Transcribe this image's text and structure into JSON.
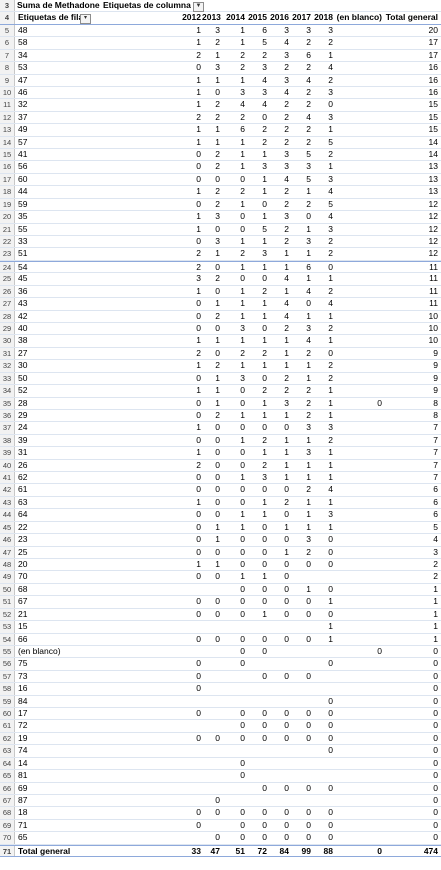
{
  "pivot": {
    "value_field": "Suma de Methadone",
    "column_field_label": "Etiquetas de columna",
    "row_field_label": "Etiquetas de fila",
    "filter_icon": "chevron-down-icon",
    "sort_filter_icon": "sort-filter-icon",
    "columns": [
      "2012",
      "2013",
      "2014",
      "2015",
      "2016",
      "2017",
      "2018",
      "(en blanco)",
      "Total general"
    ],
    "rows": [
      {
        "n": "5",
        "label": "48",
        "v": [
          "1",
          "3",
          "1",
          "6",
          "3",
          "3",
          "3",
          "",
          "20"
        ]
      },
      {
        "n": "6",
        "label": "58",
        "v": [
          "1",
          "2",
          "1",
          "5",
          "4",
          "2",
          "2",
          "",
          "17"
        ]
      },
      {
        "n": "7",
        "label": "34",
        "v": [
          "2",
          "1",
          "2",
          "2",
          "3",
          "6",
          "1",
          "",
          "17"
        ]
      },
      {
        "n": "8",
        "label": "53",
        "v": [
          "0",
          "3",
          "2",
          "3",
          "2",
          "2",
          "4",
          "",
          "16"
        ]
      },
      {
        "n": "9",
        "label": "47",
        "v": [
          "1",
          "1",
          "1",
          "4",
          "3",
          "4",
          "2",
          "",
          "16"
        ]
      },
      {
        "n": "10",
        "label": "46",
        "v": [
          "1",
          "0",
          "3",
          "3",
          "4",
          "2",
          "3",
          "",
          "16"
        ]
      },
      {
        "n": "11",
        "label": "32",
        "v": [
          "1",
          "2",
          "4",
          "4",
          "2",
          "2",
          "0",
          "",
          "15"
        ]
      },
      {
        "n": "12",
        "label": "37",
        "v": [
          "2",
          "2",
          "2",
          "0",
          "2",
          "4",
          "3",
          "",
          "15"
        ]
      },
      {
        "n": "13",
        "label": "49",
        "v": [
          "1",
          "1",
          "6",
          "2",
          "2",
          "2",
          "1",
          "",
          "15"
        ]
      },
      {
        "n": "14",
        "label": "57",
        "v": [
          "1",
          "1",
          "1",
          "2",
          "2",
          "2",
          "5",
          "",
          "14"
        ]
      },
      {
        "n": "15",
        "label": "41",
        "v": [
          "0",
          "2",
          "1",
          "1",
          "3",
          "5",
          "2",
          "",
          "14"
        ]
      },
      {
        "n": "16",
        "label": "56",
        "v": [
          "0",
          "2",
          "1",
          "3",
          "3",
          "3",
          "1",
          "",
          "13"
        ]
      },
      {
        "n": "17",
        "label": "60",
        "v": [
          "0",
          "0",
          "0",
          "1",
          "4",
          "5",
          "3",
          "",
          "13"
        ]
      },
      {
        "n": "18",
        "label": "44",
        "v": [
          "1",
          "2",
          "2",
          "1",
          "2",
          "1",
          "4",
          "",
          "13"
        ]
      },
      {
        "n": "19",
        "label": "59",
        "v": [
          "0",
          "2",
          "1",
          "0",
          "2",
          "2",
          "5",
          "",
          "12"
        ]
      },
      {
        "n": "20",
        "label": "35",
        "v": [
          "1",
          "3",
          "0",
          "1",
          "3",
          "0",
          "4",
          "",
          "12"
        ]
      },
      {
        "n": "21",
        "label": "55",
        "v": [
          "1",
          "0",
          "0",
          "5",
          "2",
          "1",
          "3",
          "",
          "12"
        ]
      },
      {
        "n": "22",
        "label": "33",
        "v": [
          "0",
          "3",
          "1",
          "1",
          "2",
          "3",
          "2",
          "",
          "12"
        ]
      },
      {
        "n": "23",
        "label": "51",
        "v": [
          "2",
          "1",
          "2",
          "3",
          "1",
          "1",
          "2",
          "",
          "12"
        ]
      },
      {
        "n": "24",
        "label": "54",
        "v": [
          "2",
          "0",
          "1",
          "1",
          "1",
          "6",
          "0",
          "",
          "11"
        ]
      },
      {
        "n": "25",
        "label": "45",
        "v": [
          "3",
          "2",
          "0",
          "0",
          "4",
          "1",
          "1",
          "",
          "11"
        ]
      },
      {
        "n": "26",
        "label": "36",
        "v": [
          "1",
          "0",
          "1",
          "2",
          "1",
          "4",
          "2",
          "",
          "11"
        ]
      },
      {
        "n": "27",
        "label": "43",
        "v": [
          "0",
          "1",
          "1",
          "1",
          "4",
          "0",
          "4",
          "",
          "11"
        ]
      },
      {
        "n": "28",
        "label": "42",
        "v": [
          "0",
          "2",
          "1",
          "1",
          "4",
          "1",
          "1",
          "",
          "10"
        ]
      },
      {
        "n": "29",
        "label": "40",
        "v": [
          "0",
          "0",
          "3",
          "0",
          "2",
          "3",
          "2",
          "",
          "10"
        ]
      },
      {
        "n": "30",
        "label": "38",
        "v": [
          "1",
          "1",
          "1",
          "1",
          "1",
          "4",
          "1",
          "",
          "10"
        ]
      },
      {
        "n": "31",
        "label": "27",
        "v": [
          "2",
          "0",
          "2",
          "2",
          "1",
          "2",
          "0",
          "",
          "9"
        ]
      },
      {
        "n": "32",
        "label": "30",
        "v": [
          "1",
          "2",
          "1",
          "1",
          "1",
          "1",
          "2",
          "",
          "9"
        ]
      },
      {
        "n": "33",
        "label": "50",
        "v": [
          "0",
          "1",
          "3",
          "0",
          "2",
          "1",
          "2",
          "",
          "9"
        ]
      },
      {
        "n": "34",
        "label": "52",
        "v": [
          "1",
          "1",
          "0",
          "2",
          "2",
          "2",
          "1",
          "",
          "9"
        ]
      },
      {
        "n": "35",
        "label": "28",
        "v": [
          "0",
          "1",
          "0",
          "1",
          "3",
          "2",
          "1",
          "0",
          "8"
        ]
      },
      {
        "n": "36",
        "label": "29",
        "v": [
          "0",
          "2",
          "1",
          "1",
          "1",
          "2",
          "1",
          "",
          "8"
        ]
      },
      {
        "n": "37",
        "label": "24",
        "v": [
          "1",
          "0",
          "0",
          "0",
          "0",
          "3",
          "3",
          "",
          "7"
        ]
      },
      {
        "n": "38",
        "label": "39",
        "v": [
          "0",
          "0",
          "1",
          "2",
          "1",
          "1",
          "2",
          "",
          "7"
        ]
      },
      {
        "n": "39",
        "label": "31",
        "v": [
          "1",
          "0",
          "0",
          "1",
          "1",
          "3",
          "1",
          "",
          "7"
        ]
      },
      {
        "n": "40",
        "label": "26",
        "v": [
          "2",
          "0",
          "0",
          "2",
          "1",
          "1",
          "1",
          "",
          "7"
        ]
      },
      {
        "n": "41",
        "label": "62",
        "v": [
          "0",
          "0",
          "1",
          "3",
          "1",
          "1",
          "1",
          "",
          "7"
        ]
      },
      {
        "n": "42",
        "label": "61",
        "v": [
          "0",
          "0",
          "0",
          "0",
          "0",
          "2",
          "4",
          "",
          "6"
        ]
      },
      {
        "n": "43",
        "label": "63",
        "v": [
          "1",
          "0",
          "0",
          "1",
          "2",
          "1",
          "1",
          "",
          "6"
        ]
      },
      {
        "n": "44",
        "label": "64",
        "v": [
          "0",
          "0",
          "1",
          "1",
          "0",
          "1",
          "3",
          "",
          "6"
        ]
      },
      {
        "n": "45",
        "label": "22",
        "v": [
          "0",
          "1",
          "1",
          "0",
          "1",
          "1",
          "1",
          "",
          "5"
        ]
      },
      {
        "n": "46",
        "label": "23",
        "v": [
          "0",
          "1",
          "0",
          "0",
          "0",
          "3",
          "0",
          "",
          "4"
        ]
      },
      {
        "n": "47",
        "label": "25",
        "v": [
          "0",
          "0",
          "0",
          "0",
          "1",
          "2",
          "0",
          "",
          "3"
        ]
      },
      {
        "n": "48",
        "label": "20",
        "v": [
          "1",
          "1",
          "0",
          "0",
          "0",
          "0",
          "0",
          "",
          "2"
        ]
      },
      {
        "n": "49",
        "label": "70",
        "v": [
          "0",
          "0",
          "1",
          "1",
          "0",
          "",
          "",
          "",
          "2"
        ]
      },
      {
        "n": "50",
        "label": "68",
        "v": [
          "",
          "",
          "0",
          "0",
          "0",
          "1",
          "0",
          "",
          "1"
        ]
      },
      {
        "n": "51",
        "label": "67",
        "v": [
          "0",
          "0",
          "0",
          "0",
          "0",
          "0",
          "1",
          "",
          "1"
        ]
      },
      {
        "n": "52",
        "label": "21",
        "v": [
          "0",
          "0",
          "0",
          "1",
          "0",
          "0",
          "0",
          "",
          "1"
        ]
      },
      {
        "n": "53",
        "label": "15",
        "v": [
          "",
          "",
          "",
          "",
          "",
          "",
          "1",
          "",
          "1"
        ]
      },
      {
        "n": "54",
        "label": "66",
        "v": [
          "0",
          "0",
          "0",
          "0",
          "0",
          "0",
          "1",
          "",
          "1"
        ]
      },
      {
        "n": "55",
        "label": "(en blanco)",
        "v": [
          "",
          "",
          "0",
          "0",
          "",
          "",
          "",
          "0",
          "0"
        ]
      },
      {
        "n": "56",
        "label": "75",
        "v": [
          "0",
          "",
          "0",
          "",
          "",
          "",
          "0",
          "",
          "0"
        ]
      },
      {
        "n": "57",
        "label": "73",
        "v": [
          "0",
          "",
          "",
          "0",
          "0",
          "0",
          "",
          "",
          "0"
        ]
      },
      {
        "n": "58",
        "label": "16",
        "v": [
          "0",
          "",
          "",
          "",
          "",
          "",
          "",
          "",
          "0"
        ]
      },
      {
        "n": "59",
        "label": "84",
        "v": [
          "",
          "",
          "",
          "",
          "",
          "",
          "0",
          "",
          "0"
        ]
      },
      {
        "n": "60",
        "label": "17",
        "v": [
          "0",
          "",
          "0",
          "0",
          "0",
          "0",
          "0",
          "",
          "0"
        ]
      },
      {
        "n": "61",
        "label": "72",
        "v": [
          "",
          "",
          "0",
          "0",
          "0",
          "0",
          "0",
          "",
          "0"
        ]
      },
      {
        "n": "62",
        "label": "19",
        "v": [
          "0",
          "0",
          "0",
          "0",
          "0",
          "0",
          "0",
          "",
          "0"
        ]
      },
      {
        "n": "63",
        "label": "74",
        "v": [
          "",
          "",
          "",
          "",
          "",
          "",
          "0",
          "",
          "0"
        ]
      },
      {
        "n": "64",
        "label": "14",
        "v": [
          "",
          "",
          "0",
          "",
          "",
          "",
          "",
          "",
          "0"
        ]
      },
      {
        "n": "65",
        "label": "81",
        "v": [
          "",
          "",
          "0",
          "",
          "",
          "",
          "",
          "",
          "0"
        ]
      },
      {
        "n": "66",
        "label": "69",
        "v": [
          "",
          "",
          "",
          "0",
          "0",
          "0",
          "0",
          "",
          "0"
        ]
      },
      {
        "n": "67",
        "label": "87",
        "v": [
          "",
          "0",
          "",
          "",
          "",
          "",
          "",
          "",
          "0"
        ]
      },
      {
        "n": "68",
        "label": "18",
        "v": [
          "0",
          "0",
          "0",
          "0",
          "0",
          "0",
          "0",
          "",
          "0"
        ]
      },
      {
        "n": "69",
        "label": "71",
        "v": [
          "0",
          "",
          "0",
          "0",
          "0",
          "0",
          "0",
          "",
          "0"
        ]
      },
      {
        "n": "70",
        "label": "65",
        "v": [
          "",
          "0",
          "0",
          "0",
          "0",
          "0",
          "0",
          "",
          "0"
        ]
      }
    ],
    "total": {
      "n": "71",
      "label": "Total general",
      "v": [
        "33",
        "47",
        "51",
        "72",
        "84",
        "99",
        "88",
        "0",
        "474"
      ]
    },
    "header_row_numbers": [
      "3",
      "4"
    ]
  }
}
